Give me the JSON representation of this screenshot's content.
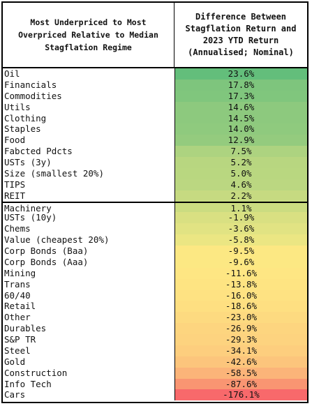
{
  "header": {
    "col1": "Most Underpriced to Most Overpriced Relative to Median Stagflation Regime",
    "col2": "Difference Between Stagflation Return and 2023 YTD Return (Annualised; Nominal)"
  },
  "rows": [
    {
      "label": "Oil",
      "value": "23.6%",
      "color": "#63be7b"
    },
    {
      "label": "Financials",
      "value": "17.8%",
      "color": "#7ec57d"
    },
    {
      "label": "Commodities",
      "value": "17.3%",
      "color": "#80c67d"
    },
    {
      "label": "Utils",
      "value": "14.6%",
      "color": "#8dc97e"
    },
    {
      "label": "Clothing",
      "value": "14.5%",
      "color": "#8dc97e"
    },
    {
      "label": "Staples",
      "value": "14.0%",
      "color": "#8fca7e"
    },
    {
      "label": "Food",
      "value": "12.9%",
      "color": "#94cb7e"
    },
    {
      "label": "Fabcted Pdcts",
      "value": "7.5%",
      "color": "#add380"
    },
    {
      "label": "USTs (3y)",
      "value": "5.2%",
      "color": "#b8d680"
    },
    {
      "label": "Size (smallest 20%)",
      "value": "5.0%",
      "color": "#b9d780"
    },
    {
      "label": "TIPS",
      "value": "4.6%",
      "color": "#bbd781"
    },
    {
      "label": "REIT",
      "value": "2.2%",
      "color": "#c6da81"
    },
    {
      "label": "Machinery",
      "value": "1.1%",
      "color": "#cbdc81"
    },
    {
      "label": "USTs (10y)",
      "value": "-1.9%",
      "color": "#d9e082"
    },
    {
      "label": "Chems",
      "value": "-3.6%",
      "color": "#e1e383"
    },
    {
      "label": "Value (cheapest 20%)",
      "value": "-5.8%",
      "color": "#ebe683"
    },
    {
      "label": "Corp Bonds (Baa)",
      "value": "-9.5%",
      "color": "#fce883"
    },
    {
      "label": "Corp Bonds (Aaa)",
      "value": "-9.6%",
      "color": "#fce883"
    },
    {
      "label": "Mining",
      "value": "-11.6%",
      "color": "#fee683"
    },
    {
      "label": "Trans",
      "value": "-13.8%",
      "color": "#fee482"
    },
    {
      "label": "60/40",
      "value": "-16.0%",
      "color": "#fee282"
    },
    {
      "label": "Retail",
      "value": "-18.6%",
      "color": "#fedf81"
    },
    {
      "label": "Other",
      "value": "-23.0%",
      "color": "#fdda80"
    },
    {
      "label": "Durables",
      "value": "-26.9%",
      "color": "#fdd57f"
    },
    {
      "label": "S&P TR",
      "value": "-29.3%",
      "color": "#fdd37f"
    },
    {
      "label": "Steel",
      "value": "-34.1%",
      "color": "#fdce7e"
    },
    {
      "label": "Gold",
      "value": "-42.6%",
      "color": "#fcc57c"
    },
    {
      "label": "Construction",
      "value": "-58.5%",
      "color": "#fbb479"
    },
    {
      "label": "Info Tech",
      "value": "-87.6%",
      "color": "#f99572"
    },
    {
      "label": "Cars",
      "value": "-176.1%",
      "color": "#f8696b"
    }
  ]
}
